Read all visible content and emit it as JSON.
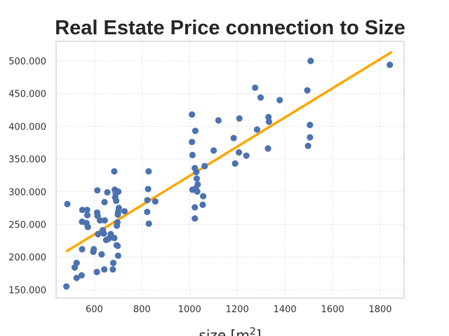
{
  "chart_data": {
    "type": "scatter",
    "title": "Real Estate Price connection to Size",
    "xlabel_base": "size [m",
    "xlabel_sup": "2",
    "xlabel_end": "]",
    "ylabel": "",
    "xlim": [
      440,
      1900
    ],
    "ylim": [
      137000,
      530000
    ],
    "xticks": [
      600,
      800,
      1000,
      1200,
      1400,
      1600,
      1800
    ],
    "xtick_labels": [
      "600",
      "800",
      "1000",
      "1200",
      "1400",
      "1600",
      "1800"
    ],
    "yticks": [
      150000,
      200000,
      250000,
      300000,
      350000,
      400000,
      450000,
      500000
    ],
    "ytick_labels": [
      "150.000",
      "200.000",
      "250.000",
      "300.000",
      "350.000",
      "400.000",
      "450.000",
      "500.000"
    ],
    "grid": true,
    "point_color": "#4c72b0",
    "line_color": "#ffa500",
    "regression_line": {
      "x": [
        485,
        1845
      ],
      "y": [
        209000,
        513000
      ]
    },
    "points": [
      {
        "x": 483,
        "y": 155000
      },
      {
        "x": 487,
        "y": 281000
      },
      {
        "x": 518,
        "y": 184000
      },
      {
        "x": 526,
        "y": 191000
      },
      {
        "x": 526,
        "y": 168000
      },
      {
        "x": 547,
        "y": 172000
      },
      {
        "x": 549,
        "y": 212000
      },
      {
        "x": 549,
        "y": 254000
      },
      {
        "x": 550,
        "y": 272000
      },
      {
        "x": 567,
        "y": 252000
      },
      {
        "x": 571,
        "y": 264000
      },
      {
        "x": 570,
        "y": 272000
      },
      {
        "x": 573,
        "y": 246000
      },
      {
        "x": 596,
        "y": 208000
      },
      {
        "x": 598,
        "y": 212000
      },
      {
        "x": 611,
        "y": 177000
      },
      {
        "x": 613,
        "y": 302000
      },
      {
        "x": 612,
        "y": 268000
      },
      {
        "x": 614,
        "y": 263000
      },
      {
        "x": 616,
        "y": 235000
      },
      {
        "x": 624,
        "y": 256000
      },
      {
        "x": 631,
        "y": 204000
      },
      {
        "x": 636,
        "y": 241000
      },
      {
        "x": 642,
        "y": 181000
      },
      {
        "x": 640,
        "y": 236000
      },
      {
        "x": 643,
        "y": 284000
      },
      {
        "x": 644,
        "y": 256000
      },
      {
        "x": 650,
        "y": 226000
      },
      {
        "x": 655,
        "y": 299000
      },
      {
        "x": 660,
        "y": 228000
      },
      {
        "x": 669,
        "y": 235000
      },
      {
        "x": 678,
        "y": 181000
      },
      {
        "x": 680,
        "y": 191000
      },
      {
        "x": 684,
        "y": 331000
      },
      {
        "x": 684,
        "y": 229000
      },
      {
        "x": 686,
        "y": 303000
      },
      {
        "x": 688,
        "y": 291000
      },
      {
        "x": 690,
        "y": 297000
      },
      {
        "x": 692,
        "y": 286000
      },
      {
        "x": 694,
        "y": 218000
      },
      {
        "x": 695,
        "y": 248000
      },
      {
        "x": 697,
        "y": 253000
      },
      {
        "x": 699,
        "y": 265000
      },
      {
        "x": 700,
        "y": 269000
      },
      {
        "x": 701,
        "y": 300000
      },
      {
        "x": 698,
        "y": 217000
      },
      {
        "x": 700,
        "y": 202000
      },
      {
        "x": 703,
        "y": 275000
      },
      {
        "x": 727,
        "y": 270000
      },
      {
        "x": 822,
        "y": 269000
      },
      {
        "x": 823,
        "y": 287000
      },
      {
        "x": 826,
        "y": 304000
      },
      {
        "x": 828,
        "y": 331000
      },
      {
        "x": 829,
        "y": 251000
      },
      {
        "x": 856,
        "y": 285000
      },
      {
        "x": 1010,
        "y": 418000
      },
      {
        "x": 1010,
        "y": 376000
      },
      {
        "x": 1012,
        "y": 356000
      },
      {
        "x": 1012,
        "y": 303000
      },
      {
        "x": 1022,
        "y": 259000
      },
      {
        "x": 1022,
        "y": 276000
      },
      {
        "x": 1022,
        "y": 336000
      },
      {
        "x": 1024,
        "y": 393000
      },
      {
        "x": 1026,
        "y": 305000
      },
      {
        "x": 1028,
        "y": 330000
      },
      {
        "x": 1030,
        "y": 320000
      },
      {
        "x": 1032,
        "y": 300000
      },
      {
        "x": 1034,
        "y": 311000
      },
      {
        "x": 1055,
        "y": 280000
      },
      {
        "x": 1057,
        "y": 293000
      },
      {
        "x": 1063,
        "y": 339000
      },
      {
        "x": 1101,
        "y": 363000
      },
      {
        "x": 1121,
        "y": 409000
      },
      {
        "x": 1185,
        "y": 382000
      },
      {
        "x": 1191,
        "y": 343000
      },
      {
        "x": 1207,
        "y": 360000
      },
      {
        "x": 1209,
        "y": 412000
      },
      {
        "x": 1238,
        "y": 355000
      },
      {
        "x": 1275,
        "y": 459000
      },
      {
        "x": 1283,
        "y": 395000
      },
      {
        "x": 1298,
        "y": 444000
      },
      {
        "x": 1329,
        "y": 366000
      },
      {
        "x": 1331,
        "y": 414000
      },
      {
        "x": 1333,
        "y": 407000
      },
      {
        "x": 1378,
        "y": 440000
      },
      {
        "x": 1494,
        "y": 455000
      },
      {
        "x": 1497,
        "y": 370000
      },
      {
        "x": 1505,
        "y": 402000
      },
      {
        "x": 1505,
        "y": 383000
      },
      {
        "x": 1508,
        "y": 500000
      },
      {
        "x": 1840,
        "y": 494000
      }
    ]
  }
}
